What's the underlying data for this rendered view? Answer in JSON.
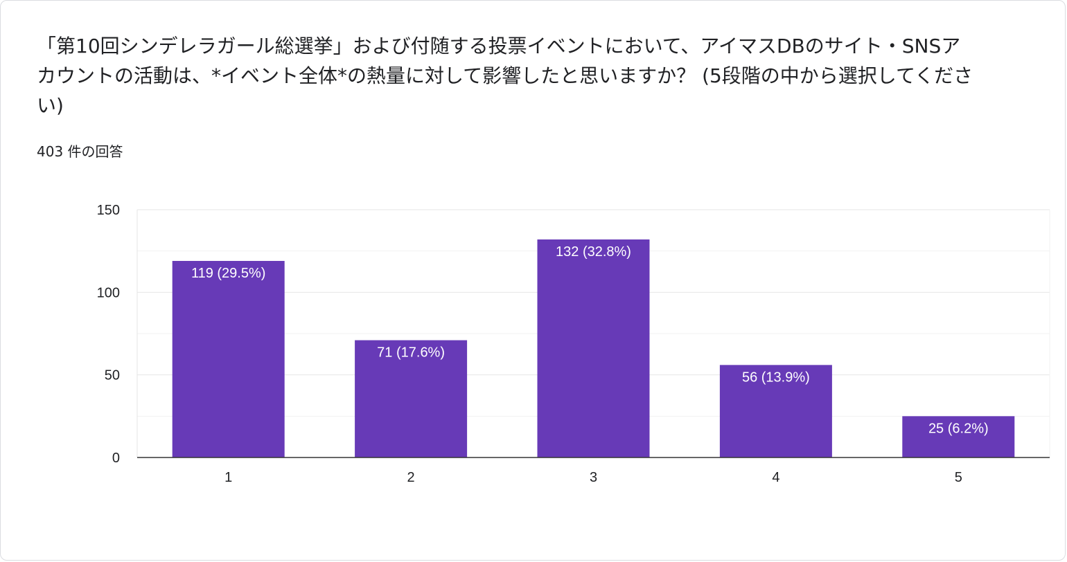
{
  "question": {
    "title": "「第10回シンデレラガール総選挙」および付随する投票イベントにおいて、アイマスDBのサイト・SNSアカウントの活動は、*イベント全体*の熱量に対して影響したと思いますか？ (5段階の中から選択してください)",
    "response_count": "403 件の回答"
  },
  "chart_data": {
    "type": "bar",
    "categories": [
      "1",
      "2",
      "3",
      "4",
      "5"
    ],
    "values": [
      119,
      71,
      132,
      56,
      25
    ],
    "data_labels": [
      "119 (29.5%)",
      "71 (17.6%)",
      "132 (32.8%)",
      "56 (13.9%)",
      "25 (6.2%)"
    ],
    "title": "",
    "xlabel": "",
    "ylabel": "",
    "ylim": [
      0,
      150
    ],
    "yticks": [
      0,
      50,
      100,
      150
    ],
    "grid": true,
    "legend": "none",
    "colors": {
      "bar": "#673ab7",
      "grid": "#ebebeb",
      "axis": "#333333"
    }
  }
}
